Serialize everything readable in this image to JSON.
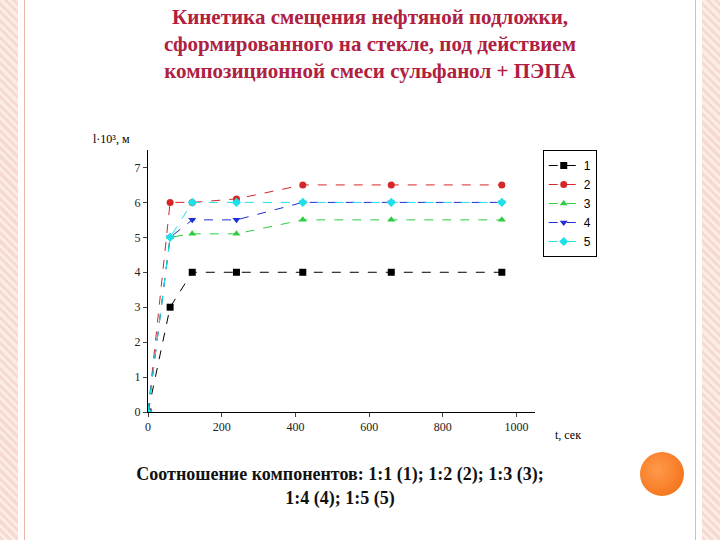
{
  "chart_data": {
    "type": "line",
    "title": [
      "Кинетика смещения нефтяной подложки,",
      "сформированного на стекле, под действием",
      "композиционной смеси сульфанол + ПЭПА"
    ],
    "caption": [
      "Соотношение компонентов: 1:1 (1); 1:2 (2); 1:3 (3);",
      "1:4 (4); 1:5 (5)"
    ],
    "x_label": "t, сек",
    "y_label": "l·10³, м",
    "x": [
      0,
      60,
      120,
      240,
      420,
      660,
      960
    ],
    "series": [
      {
        "name": "1",
        "color": "#000000",
        "marker": "square",
        "line_style": "dash",
        "values": [
          0,
          3,
          4,
          4,
          4,
          4,
          4
        ]
      },
      {
        "name": "2",
        "color": "#d62728",
        "marker": "circle",
        "line_style": "dash",
        "values": [
          0,
          6,
          6,
          6.1,
          6.5,
          6.5,
          6.5
        ]
      },
      {
        "name": "3",
        "color": "#2ecc40",
        "marker": "triangle-up",
        "line_style": "dash",
        "values": [
          0,
          5,
          5.1,
          5.1,
          5.5,
          5.5,
          5.5
        ]
      },
      {
        "name": "4",
        "color": "#1f2fd8",
        "marker": "triangle-down",
        "line_style": "dash",
        "values": [
          0,
          5,
          5.5,
          5.5,
          6,
          6,
          6
        ]
      },
      {
        "name": "5",
        "color": "#1ee0e8",
        "marker": "diamond",
        "line_style": "dash",
        "values": [
          0,
          5,
          6,
          6,
          6,
          6,
          6
        ]
      }
    ],
    "xlim": [
      0,
      1050
    ],
    "ylim": [
      0,
      7.5
    ],
    "xticks": [
      0,
      200,
      400,
      600,
      800,
      1000
    ],
    "yticks": [
      0,
      1,
      2,
      3,
      4,
      5,
      6,
      7
    ],
    "grid": false,
    "legend": "top right"
  }
}
